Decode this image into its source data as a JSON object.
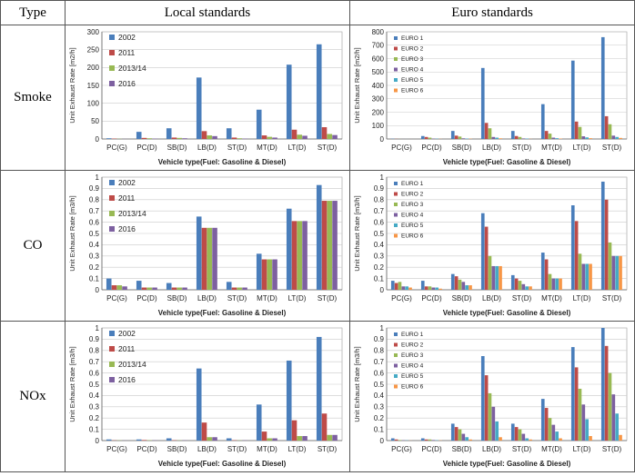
{
  "header": {
    "type_label": "Type",
    "local_label": "Local standards",
    "euro_label": "Euro standards"
  },
  "rows": [
    {
      "label": "Smoke"
    },
    {
      "label": "CO"
    },
    {
      "label": "NOx"
    }
  ],
  "colors": {
    "local": [
      "#4a7ebb",
      "#be4b48",
      "#98b954",
      "#7d60a0"
    ],
    "euro": [
      "#4a7ebb",
      "#be4b48",
      "#98b954",
      "#7d60a0",
      "#46aac5",
      "#f79646"
    ]
  },
  "chart_data": [
    {
      "id": "smoke-local",
      "type": "bar",
      "ylabel": "Unit Exhaust Rate [m2/h]",
      "xlabel": "Vehicle type(Fuel: Gasoline & Diesel)",
      "ylim": [
        0,
        300
      ],
      "yticks": [
        0,
        50,
        100,
        150,
        200,
        250,
        300
      ],
      "grid": true,
      "legend": "top-left",
      "categories": [
        "PC(G)",
        "PC(D)",
        "SB(D)",
        "LB(D)",
        "ST(D)",
        "MT(D)",
        "LT(D)",
        "ST(D)"
      ],
      "series": [
        {
          "name": "2002",
          "values": [
            2,
            20,
            30,
            172,
            30,
            82,
            208,
            265
          ]
        },
        {
          "name": "2011",
          "values": [
            1,
            3,
            4,
            22,
            4,
            10,
            26,
            33
          ]
        },
        {
          "name": "2013/14",
          "values": [
            0.5,
            2,
            3,
            10,
            2,
            6,
            12,
            14
          ]
        },
        {
          "name": "2016",
          "values": [
            0.3,
            1,
            2,
            8,
            1,
            4,
            9,
            11
          ]
        }
      ]
    },
    {
      "id": "smoke-euro",
      "type": "bar",
      "ylabel": "Unit Exhaust Rate [m2/h]",
      "xlabel": "Vehicle type(Fuel: Gasoline & Diesel)",
      "ylim": [
        0,
        800
      ],
      "yticks": [
        0,
        100,
        200,
        300,
        400,
        500,
        600,
        700,
        800
      ],
      "grid": true,
      "legend": "top-left",
      "categories": [
        "PC(G)",
        "PC(D)",
        "SB(D)",
        "LB(D)",
        "ST(D)",
        "MT(D)",
        "LT(D)",
        "ST(D)"
      ],
      "series": [
        {
          "name": "EURO 1",
          "values": [
            2,
            22,
            60,
            530,
            60,
            260,
            585,
            760
          ]
        },
        {
          "name": "EURO 2",
          "values": [
            1,
            15,
            25,
            120,
            22,
            60,
            130,
            170
          ]
        },
        {
          "name": "EURO 3",
          "values": [
            0.5,
            10,
            18,
            80,
            15,
            40,
            90,
            110
          ]
        },
        {
          "name": "EURO 4",
          "values": [
            0.3,
            3,
            5,
            15,
            4,
            10,
            20,
            25
          ]
        },
        {
          "name": "EURO 5",
          "values": [
            0.2,
            2,
            3,
            10,
            3,
            6,
            12,
            15
          ]
        },
        {
          "name": "EURO 6",
          "values": [
            0.1,
            1,
            2,
            5,
            1,
            3,
            6,
            8
          ]
        }
      ]
    },
    {
      "id": "co-local",
      "type": "bar",
      "ylabel": "Unit Exhaust Rate [m3/h]",
      "xlabel": "Vehicle type(Fuel: Gasoline & Diesel)",
      "ylim": [
        0,
        1.0
      ],
      "yticks": [
        0,
        0.1,
        0.2,
        0.3,
        0.4,
        0.5,
        0.6,
        0.7,
        0.8,
        0.9,
        1.0
      ],
      "grid": true,
      "legend": "top-left",
      "categories": [
        "PC(G)",
        "PC(D)",
        "SB(D)",
        "LB(D)",
        "ST(D)",
        "MT(D)",
        "LT(D)",
        "ST(D)"
      ],
      "series": [
        {
          "name": "2002",
          "values": [
            0.1,
            0.08,
            0.06,
            0.65,
            0.07,
            0.32,
            0.72,
            0.93
          ]
        },
        {
          "name": "2011",
          "values": [
            0.04,
            0.02,
            0.02,
            0.55,
            0.02,
            0.27,
            0.61,
            0.79
          ]
        },
        {
          "name": "2013/14",
          "values": [
            0.04,
            0.02,
            0.02,
            0.55,
            0.02,
            0.27,
            0.61,
            0.79
          ]
        },
        {
          "name": "2016",
          "values": [
            0.03,
            0.02,
            0.02,
            0.55,
            0.02,
            0.27,
            0.61,
            0.79
          ]
        }
      ]
    },
    {
      "id": "co-euro",
      "type": "bar",
      "ylabel": "Unit Exhaust Rate [m3/h]",
      "xlabel": "Vehicle type(Fuel: Gasoline & Diesel)",
      "ylim": [
        0,
        1.0
      ],
      "yticks": [
        0,
        0.1,
        0.2,
        0.3,
        0.4,
        0.5,
        0.6,
        0.7,
        0.8,
        0.9,
        1.0
      ],
      "grid": true,
      "legend": "top-left",
      "categories": [
        "PC(G)",
        "PC(D)",
        "SB(D)",
        "LB(D)",
        "ST(D)",
        "MT(D)",
        "LT(D)",
        "ST(D)"
      ],
      "series": [
        {
          "name": "EURO 1",
          "values": [
            0.08,
            0.08,
            0.14,
            0.68,
            0.13,
            0.33,
            0.75,
            0.96
          ]
        },
        {
          "name": "EURO 2",
          "values": [
            0.06,
            0.03,
            0.12,
            0.56,
            0.1,
            0.27,
            0.61,
            0.8
          ]
        },
        {
          "name": "EURO 3",
          "values": [
            0.07,
            0.03,
            0.09,
            0.3,
            0.08,
            0.14,
            0.32,
            0.42
          ]
        },
        {
          "name": "EURO 4",
          "values": [
            0.03,
            0.02,
            0.07,
            0.21,
            0.05,
            0.1,
            0.23,
            0.3
          ]
        },
        {
          "name": "EURO 5",
          "values": [
            0.03,
            0.02,
            0.04,
            0.21,
            0.03,
            0.1,
            0.23,
            0.3
          ]
        },
        {
          "name": "EURO 6",
          "values": [
            0.02,
            0.01,
            0.04,
            0.21,
            0.03,
            0.1,
            0.23,
            0.3
          ]
        }
      ]
    },
    {
      "id": "nox-local",
      "type": "bar",
      "ylabel": "Unit Exhaust Rate [m3/h]",
      "xlabel": "Vehicle type(Fuel: Gasoline & Diesel)",
      "ylim": [
        0,
        1.0
      ],
      "yticks": [
        0,
        0.1,
        0.2,
        0.3,
        0.4,
        0.5,
        0.6,
        0.7,
        0.8,
        0.9,
        1.0
      ],
      "grid": true,
      "legend": "top-left",
      "categories": [
        "PC(G)",
        "PC(D)",
        "SB(D)",
        "LB(D)",
        "ST(D)",
        "MT(D)",
        "LT(D)",
        "ST(D)"
      ],
      "series": [
        {
          "name": "2002",
          "values": [
            0.01,
            0.01,
            0.02,
            0.64,
            0.02,
            0.32,
            0.71,
            0.92
          ]
        },
        {
          "name": "2011",
          "values": [
            0.002,
            0.005,
            0.003,
            0.16,
            0.003,
            0.08,
            0.18,
            0.24
          ]
        },
        {
          "name": "2013/14",
          "values": [
            0.002,
            0.003,
            0.002,
            0.03,
            0.002,
            0.02,
            0.04,
            0.05
          ]
        },
        {
          "name": "2016",
          "values": [
            0.001,
            0.002,
            0.002,
            0.03,
            0.002,
            0.02,
            0.04,
            0.05
          ]
        }
      ]
    },
    {
      "id": "nox-euro",
      "type": "bar",
      "ylabel": "Unit Exhaust Rate [m3/h]",
      "xlabel": "Vehicle type(Fuel: Gasoline & Diesel)",
      "ylim": [
        0,
        1.0
      ],
      "yticks": [
        0,
        0.1,
        0.2,
        0.3,
        0.4,
        0.5,
        0.6,
        0.7,
        0.8,
        0.9,
        1.0
      ],
      "grid": true,
      "legend": "top-left",
      "categories": [
        "PC(G)",
        "PC(D)",
        "SB(D)",
        "LB(D)",
        "ST(D)",
        "MT(D)",
        "LT(D)",
        "ST(D)"
      ],
      "series": [
        {
          "name": "EURO 1",
          "values": [
            0.02,
            0.02,
            0.15,
            0.75,
            0.15,
            0.37,
            0.83,
            1.0
          ]
        },
        {
          "name": "EURO 2",
          "values": [
            0.01,
            0.01,
            0.12,
            0.58,
            0.12,
            0.29,
            0.65,
            0.84
          ]
        },
        {
          "name": "EURO 3",
          "values": [
            0.005,
            0.01,
            0.1,
            0.42,
            0.1,
            0.2,
            0.46,
            0.6
          ]
        },
        {
          "name": "EURO 4",
          "values": [
            0.003,
            0.005,
            0.06,
            0.3,
            0.06,
            0.14,
            0.32,
            0.41
          ]
        },
        {
          "name": "EURO 5",
          "values": [
            0.002,
            0.003,
            0.03,
            0.17,
            0.02,
            0.08,
            0.19,
            0.24
          ]
        },
        {
          "name": "EURO 6",
          "values": [
            0.001,
            0.002,
            0.01,
            0.03,
            0.01,
            0.02,
            0.04,
            0.05
          ]
        }
      ]
    }
  ]
}
